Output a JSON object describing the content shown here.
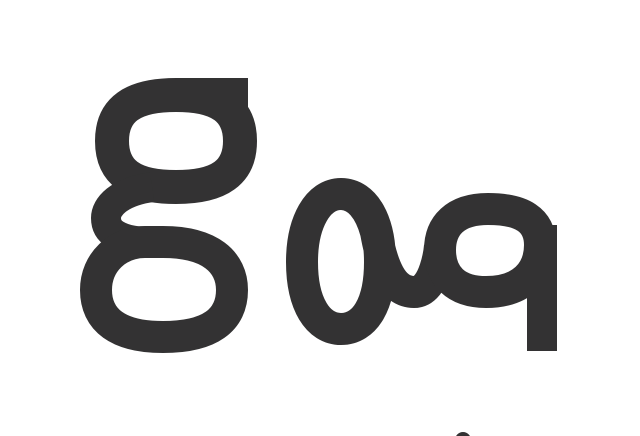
{
  "logo": {
    "name": "g-oq-logo",
    "wordmark": "goq",
    "ink_color": "#333233",
    "background_color": "#ffffff"
  }
}
